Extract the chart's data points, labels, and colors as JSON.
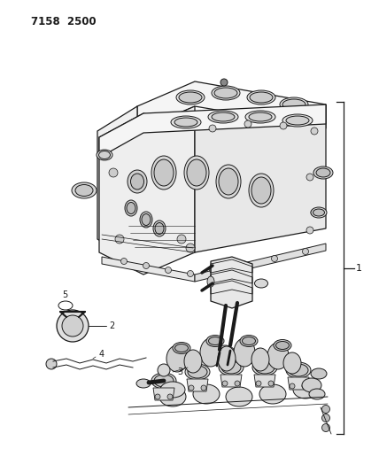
{
  "title": "7158  2500",
  "bg_color": "#ffffff",
  "line_color": "#1a1a1a",
  "figsize": [
    4.28,
    5.33
  ],
  "dpi": 100,
  "label_1": "1",
  "label_2": "2",
  "label_3": "3",
  "label_4": "4",
  "label_5": "5"
}
